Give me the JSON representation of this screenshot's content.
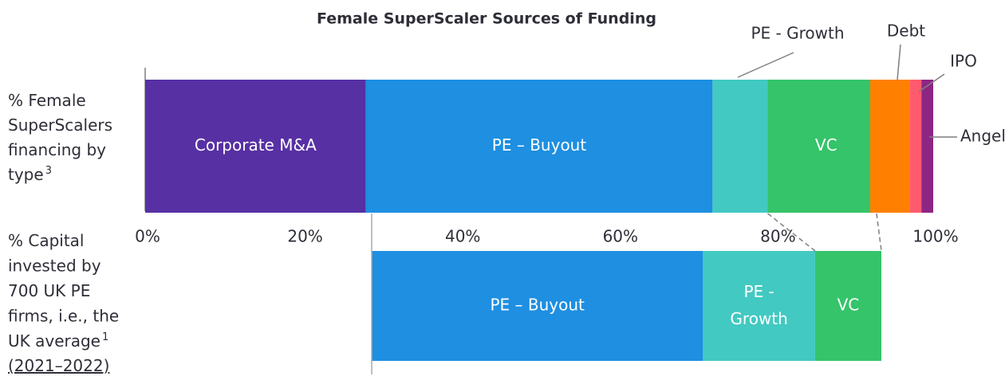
{
  "chart_data": {
    "type": "bar",
    "orientation": "horizontal",
    "stacked": true,
    "title": "Female SuperScaler Sources of Funding",
    "xlim": [
      0,
      100
    ],
    "xticks": [
      {
        "value": 0,
        "label": "0%"
      },
      {
        "value": 20,
        "label": "20%"
      },
      {
        "value": 40,
        "label": "40%"
      },
      {
        "value": 60,
        "label": "60%"
      },
      {
        "value": 80,
        "label": "80%"
      },
      {
        "value": 100,
        "label": "100%"
      }
    ],
    "bars": [
      {
        "label": "% Female SuperScalers financing by type",
        "note": "3",
        "segments": [
          {
            "name": "Corporate M&A",
            "color": "#5730a3",
            "value": 28
          },
          {
            "name": "PE – Buyout",
            "color": "#1e8fe1",
            "value": 44
          },
          {
            "name": "PE - Growth",
            "color": "#42c9c2",
            "value": 7
          },
          {
            "name": "VC",
            "color": "#35c46a",
            "value": 13
          },
          {
            "name": "Debt",
            "color": "#ff8000",
            "value": 5
          },
          {
            "name": "IPO",
            "color": "#ff5a6e",
            "value": 1.5
          },
          {
            "name": "Angel",
            "color": "#8d2583",
            "value": 1.5
          }
        ]
      },
      {
        "label": "% Capital invested by 700 UK PE firms, i.e., the UK average",
        "note": "1",
        "period": "(2021–2022)",
        "segments": [
          {
            "name": "PE – Buyout",
            "color": "#1e8fe1",
            "value": 65
          },
          {
            "name": "PE - Growth",
            "color": "#42c9c2",
            "value": 22
          },
          {
            "name": "VC",
            "color": "#35c46a",
            "value": 13
          }
        ]
      }
    ]
  }
}
